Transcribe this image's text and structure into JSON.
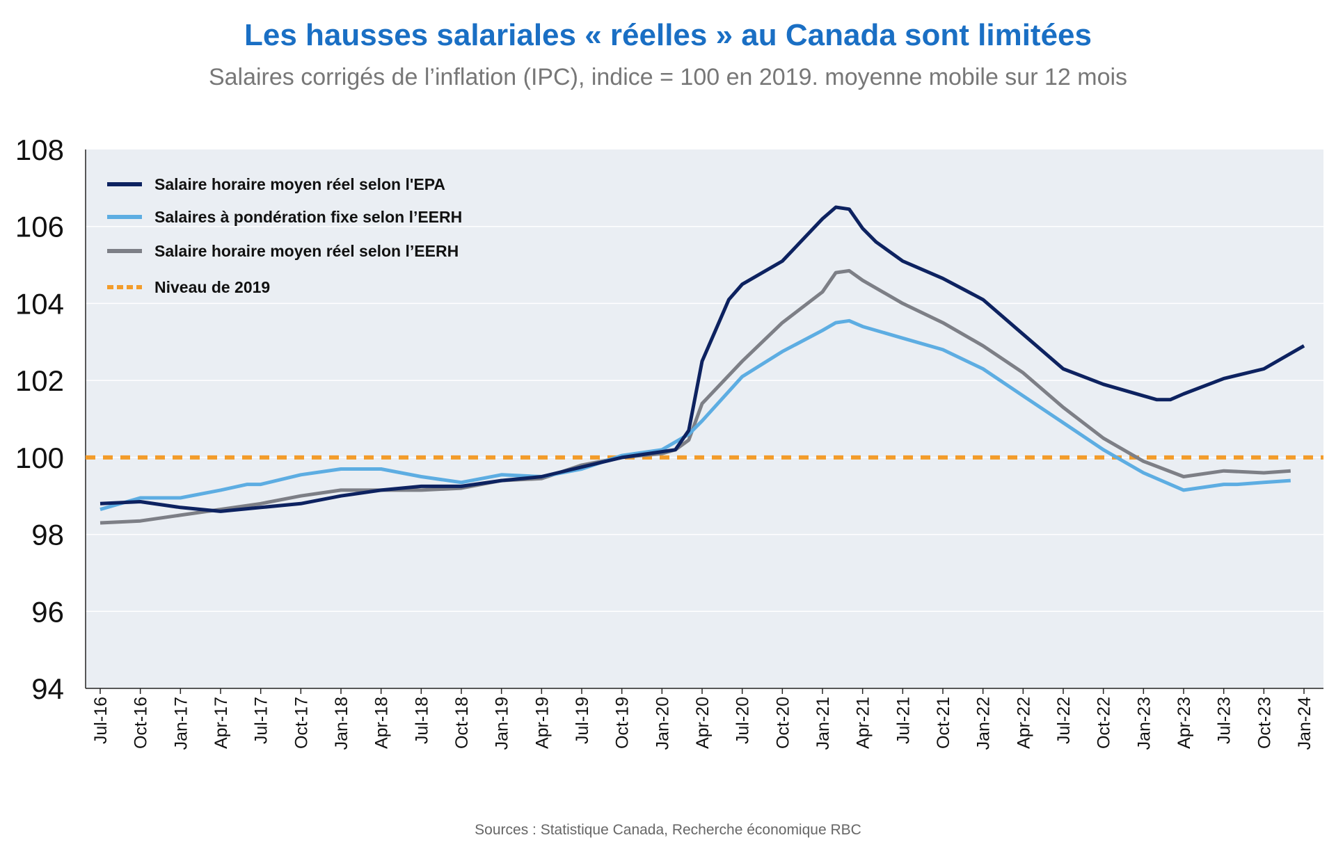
{
  "chart_data": {
    "type": "line",
    "title": "Les hausses salariales « réelles » au Canada sont limitées",
    "subtitle": "Salaires corrigés de l’inflation (IPC), indice = 100 en 2019. moyenne mobile sur 12 mois",
    "source": "Sources : Statistique Canada, Recherche économique RBC",
    "xlabel": "",
    "ylabel": "",
    "ylim": [
      94,
      108
    ],
    "yticks": [
      "94",
      "96",
      "98",
      "100",
      "102",
      "104",
      "106",
      "108"
    ],
    "xrange": [
      "2016-07",
      "2024-01"
    ],
    "xticks": [
      "Jul-16",
      "Oct-16",
      "Jan-17",
      "Apr-17",
      "Jul-17",
      "Oct-17",
      "Jan-18",
      "Apr-18",
      "Jul-18",
      "Oct-18",
      "Jan-19",
      "Apr-19",
      "Jul-19",
      "Oct-19",
      "Jan-20",
      "Apr-20",
      "Jul-20",
      "Oct-20",
      "Jan-21",
      "Apr-21",
      "Jul-21",
      "Oct-21",
      "Jan-22",
      "Apr-22",
      "Jul-22",
      "Oct-22",
      "Jan-23",
      "Apr-23",
      "Jul-23",
      "Oct-23",
      "Jan-24"
    ],
    "grid": true,
    "legend_position": "top-left",
    "reference_line": {
      "name": "Niveau de 2019",
      "value": 100,
      "color": "#f39c2a"
    },
    "series": [
      {
        "name": "Salaire horaire moyen réel selon l'EPA",
        "color": "#0d2260",
        "x": [
          "2016-07",
          "2016-10",
          "2017-01",
          "2017-04",
          "2017-07",
          "2017-10",
          "2018-01",
          "2018-04",
          "2018-07",
          "2018-10",
          "2019-01",
          "2019-04",
          "2019-07",
          "2019-10",
          "2020-01",
          "2020-02",
          "2020-03",
          "2020-04",
          "2020-05",
          "2020-06",
          "2020-07",
          "2020-10",
          "2021-01",
          "2021-02",
          "2021-03",
          "2021-04",
          "2021-05",
          "2021-07",
          "2021-10",
          "2022-01",
          "2022-04",
          "2022-07",
          "2022-10",
          "2023-01",
          "2023-02",
          "2023-03",
          "2023-04",
          "2023-07",
          "2023-10",
          "2024-01"
        ],
        "values": [
          98.8,
          98.85,
          98.7,
          98.6,
          98.7,
          98.8,
          99.0,
          99.15,
          99.25,
          99.25,
          99.4,
          99.5,
          99.75,
          100.0,
          100.15,
          100.2,
          100.7,
          102.5,
          103.3,
          104.1,
          104.5,
          105.1,
          106.2,
          106.5,
          106.45,
          105.95,
          105.6,
          105.1,
          104.65,
          104.1,
          103.2,
          102.3,
          101.9,
          101.6,
          101.5,
          101.5,
          101.65,
          102.05,
          102.3,
          102.9
        ]
      },
      {
        "name": "Salaires à pondération fixe selon l’EERH",
        "color": "#5dade2",
        "x": [
          "2016-07",
          "2016-10",
          "2017-01",
          "2017-04",
          "2017-06",
          "2017-07",
          "2017-10",
          "2018-01",
          "2018-04",
          "2018-07",
          "2018-10",
          "2019-01",
          "2019-04",
          "2019-07",
          "2019-10",
          "2020-01",
          "2020-03",
          "2020-04",
          "2020-07",
          "2020-10",
          "2021-01",
          "2021-02",
          "2021-03",
          "2021-04",
          "2021-07",
          "2021-10",
          "2022-01",
          "2022-04",
          "2022-07",
          "2022-10",
          "2023-01",
          "2023-04",
          "2023-07",
          "2023-08",
          "2023-10",
          "2023-12"
        ],
        "values": [
          98.65,
          98.95,
          98.95,
          99.15,
          99.3,
          99.3,
          99.55,
          99.7,
          99.7,
          99.5,
          99.35,
          99.55,
          99.5,
          99.7,
          100.05,
          100.2,
          100.6,
          100.95,
          102.1,
          102.75,
          103.3,
          103.5,
          103.55,
          103.4,
          103.1,
          102.8,
          102.3,
          101.6,
          100.9,
          100.2,
          99.6,
          99.15,
          99.3,
          99.3,
          99.35,
          99.4
        ]
      },
      {
        "name": "Salaire horaire moyen réel selon l’EERH",
        "color": "#7d7f86",
        "x": [
          "2016-07",
          "2016-10",
          "2017-01",
          "2017-04",
          "2017-07",
          "2017-10",
          "2018-01",
          "2018-04",
          "2018-07",
          "2018-10",
          "2019-01",
          "2019-04",
          "2019-07",
          "2019-10",
          "2020-01",
          "2020-02",
          "2020-03",
          "2020-04",
          "2020-07",
          "2020-10",
          "2021-01",
          "2021-02",
          "2021-03",
          "2021-04",
          "2021-07",
          "2021-10",
          "2022-01",
          "2022-04",
          "2022-07",
          "2022-10",
          "2023-01",
          "2023-04",
          "2023-07",
          "2023-10",
          "2023-12"
        ],
        "values": [
          98.3,
          98.35,
          98.5,
          98.65,
          98.8,
          99.0,
          99.15,
          99.15,
          99.15,
          99.2,
          99.4,
          99.45,
          99.8,
          100.0,
          100.1,
          100.2,
          100.45,
          101.4,
          102.5,
          103.5,
          104.3,
          104.8,
          104.85,
          104.6,
          104.0,
          103.5,
          102.9,
          102.2,
          101.3,
          100.5,
          99.9,
          99.5,
          99.65,
          99.6,
          99.65
        ]
      }
    ]
  }
}
